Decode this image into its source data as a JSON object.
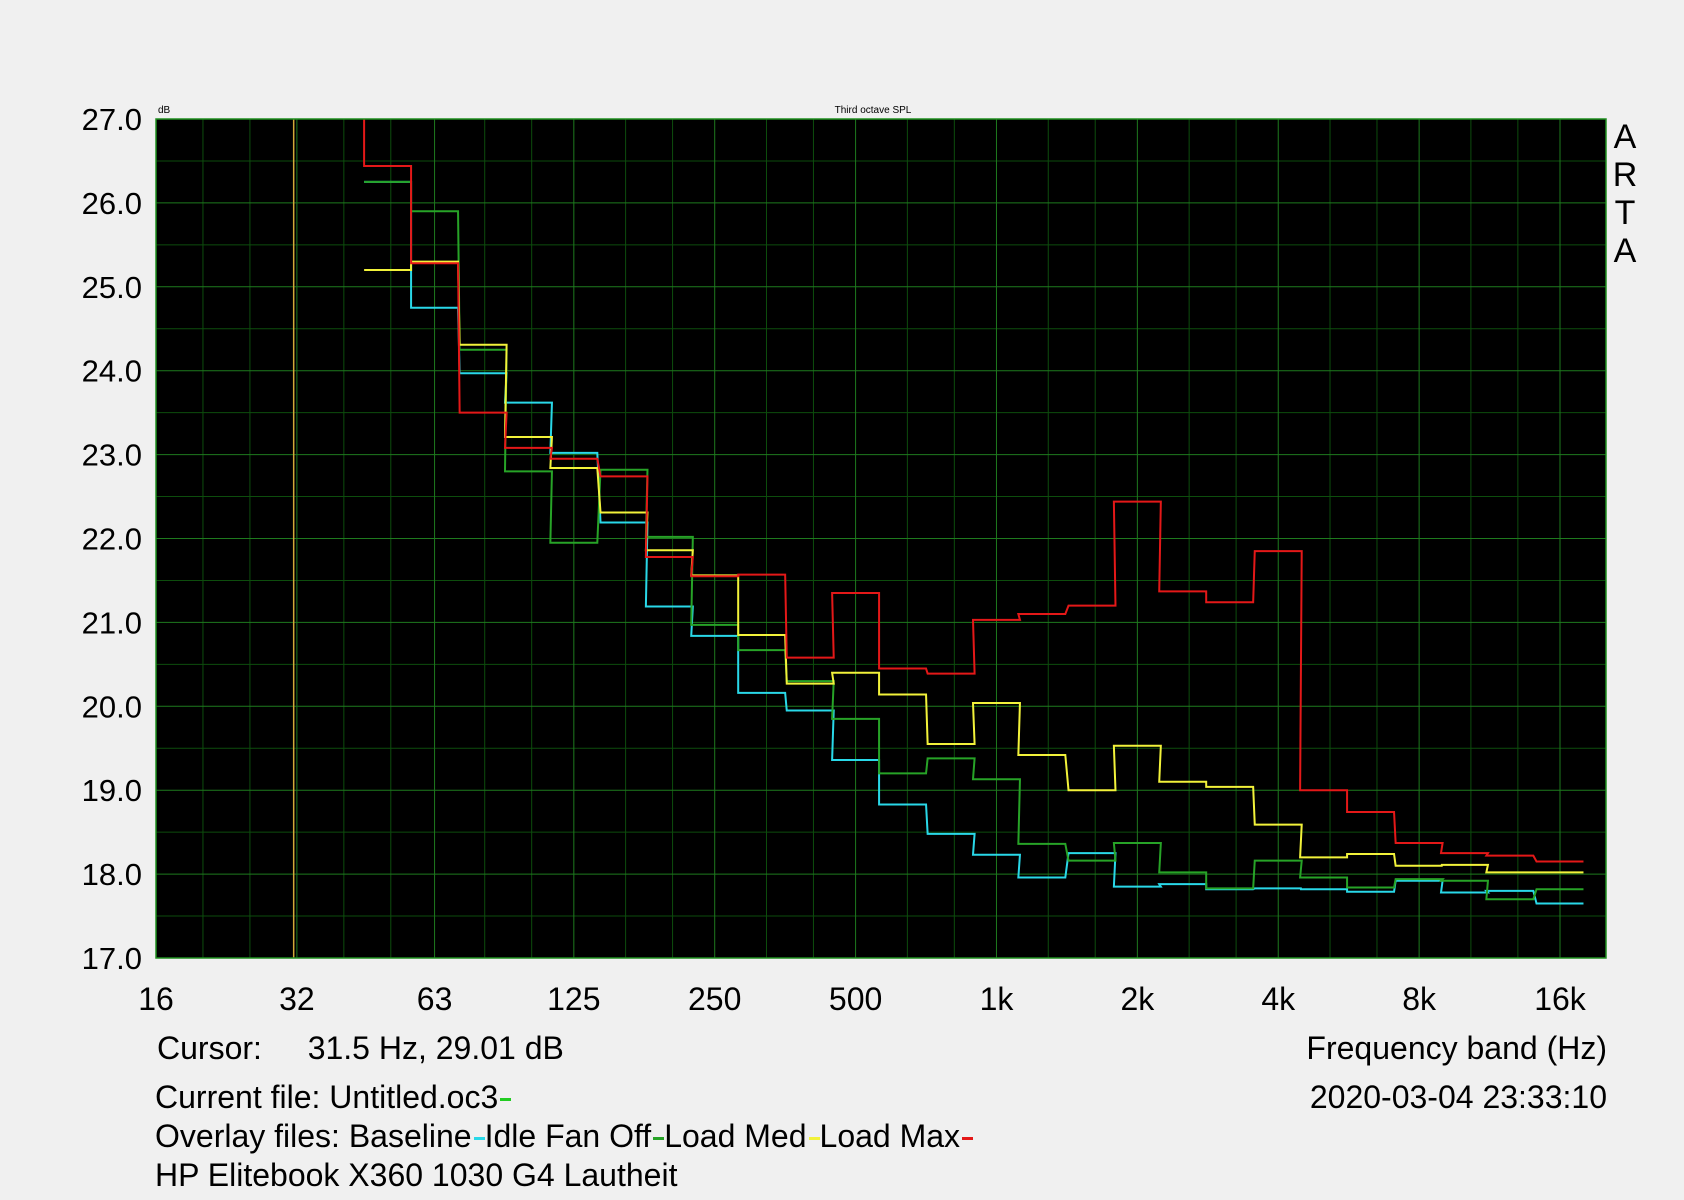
{
  "chart_data": {
    "type": "line",
    "title": "Third octave SPL",
    "ylabel": "dB",
    "xlabel": "Frequency band (Hz)",
    "x_scale": "log",
    "x_range": [
      16,
      20000
    ],
    "xticks": [
      {
        "value": 16,
        "label": "16"
      },
      {
        "value": 32,
        "label": "32"
      },
      {
        "value": 63,
        "label": "63"
      },
      {
        "value": 125,
        "label": "125"
      },
      {
        "value": 250,
        "label": "250"
      },
      {
        "value": 500,
        "label": "500"
      },
      {
        "value": 1000,
        "label": "1k"
      },
      {
        "value": 2000,
        "label": "2k"
      },
      {
        "value": 4000,
        "label": "4k"
      },
      {
        "value": 8000,
        "label": "8k"
      },
      {
        "value": 16000,
        "label": "16k"
      }
    ],
    "ylim": [
      17.0,
      27.0
    ],
    "yticks": [
      "17.0",
      "18.0",
      "19.0",
      "20.0",
      "21.0",
      "22.0",
      "23.0",
      "24.0",
      "25.0",
      "26.0",
      "27.0"
    ],
    "grid": true,
    "cursor_frequency": 31.5,
    "bands": [
      50,
      63,
      80,
      100,
      125,
      160,
      200,
      250,
      315,
      400,
      500,
      630,
      800,
      1000,
      1250,
      1600,
      2000,
      2500,
      3150,
      4000,
      5000,
      6300,
      8000,
      10000,
      12500,
      16000
    ],
    "series": [
      {
        "name": "Baseline",
        "color": "#29d8e8",
        "values": [
          26.25,
          24.75,
          23.97,
          23.62,
          23.02,
          22.19,
          21.19,
          20.84,
          20.16,
          19.95,
          19.36,
          18.83,
          18.48,
          18.23,
          17.96,
          18.25,
          17.85,
          17.88,
          17.82,
          17.83,
          17.82,
          17.79,
          17.92,
          17.78,
          17.8,
          17.65
        ]
      },
      {
        "name": "Idle Fan Off",
        "color": "#27a327",
        "values": [
          26.25,
          25.9,
          24.25,
          22.8,
          21.95,
          22.82,
          22.02,
          20.97,
          20.67,
          20.3,
          19.85,
          19.2,
          19.38,
          19.13,
          18.36,
          18.16,
          18.37,
          18.02,
          17.83,
          18.16,
          17.96,
          17.84,
          17.94,
          17.92,
          17.7,
          17.82
        ]
      },
      {
        "name": "Load Med",
        "color": "#f2f23a",
        "values": [
          25.2,
          25.3,
          24.31,
          23.21,
          22.84,
          22.31,
          21.86,
          21.56,
          20.85,
          20.27,
          20.4,
          20.14,
          19.55,
          20.04,
          19.42,
          19.0,
          19.53,
          19.1,
          19.04,
          18.59,
          18.2,
          18.24,
          18.1,
          18.11,
          18.02,
          18.02
        ]
      },
      {
        "name": "Load Max",
        "color": "#e41818",
        "values": [
          26.44,
          25.28,
          23.5,
          23.08,
          22.95,
          22.74,
          21.78,
          21.55,
          21.57,
          20.58,
          21.35,
          20.45,
          20.39,
          21.03,
          21.1,
          21.2,
          22.44,
          21.37,
          21.24,
          21.85,
          19.0,
          18.74,
          18.37,
          18.25,
          18.22,
          18.15
        ]
      }
    ]
  },
  "footer": {
    "cursor_label": "Cursor:",
    "cursor_value": "31.5 Hz, 29.01 dB",
    "current_file_label": "Current file: Untitled.oc3",
    "current_file_color": "#22cc22",
    "overlay_label": "Overlay files:",
    "description": "HP Elitebook X360 1030 G4 Lautheit",
    "timestamp": "2020-03-04  23:33:10"
  },
  "brand": [
    "A",
    "R",
    "T",
    "A"
  ]
}
